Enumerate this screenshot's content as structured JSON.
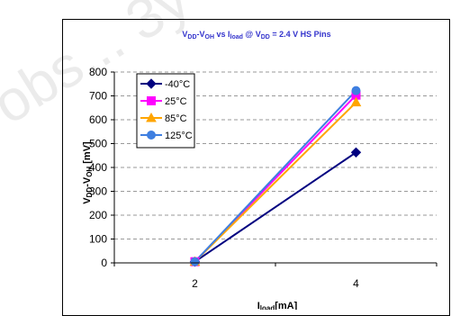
{
  "watermark": {
    "text": "obs... 3y"
  },
  "chart_data": {
    "type": "line",
    "title": "VDD-VOH vs Iload @ VDD = 2.4 V HS Pins",
    "title_parts": {
      "v1": "V",
      "v1_sub": "DD",
      "dash": "-V",
      "v2_sub": "OH",
      "vs": " vs I",
      "i_sub": "load",
      "at": " @ V",
      "vdd_sub": "DD",
      "rest": " = 2.4 V HS Pins"
    },
    "title_color": "#3333cc",
    "ylabel": "VDD-VOH [mV]",
    "ylabel_parts": {
      "a": "V",
      "a_sub": "DD",
      "b": "-V",
      "b_sub": "OH",
      "c": " [mV]"
    },
    "xlabel": "Iload[mA]",
    "xlabel_parts": {
      "a": "I",
      "a_sub": "load",
      "b": "[mA]"
    },
    "categories": [
      "2",
      "4"
    ],
    "ylim": [
      0,
      800
    ],
    "yticks": [
      "0",
      "100",
      "200",
      "300",
      "400",
      "500",
      "600",
      "700",
      "800"
    ],
    "grid": true,
    "legend_position": "top-left",
    "series": [
      {
        "name": "-40°C",
        "values": [
          5,
          463
        ],
        "color": "#000080",
        "marker": "diamond"
      },
      {
        "name": "25°C",
        "values": [
          5,
          703
        ],
        "color": "#ff00ff",
        "marker": "square"
      },
      {
        "name": "85°C",
        "values": [
          5,
          673
        ],
        "color": "#ffa500",
        "marker": "triangle"
      },
      {
        "name": "125°C",
        "values": [
          5,
          722
        ],
        "color": "#3f7fe0",
        "marker": "circle"
      }
    ]
  }
}
